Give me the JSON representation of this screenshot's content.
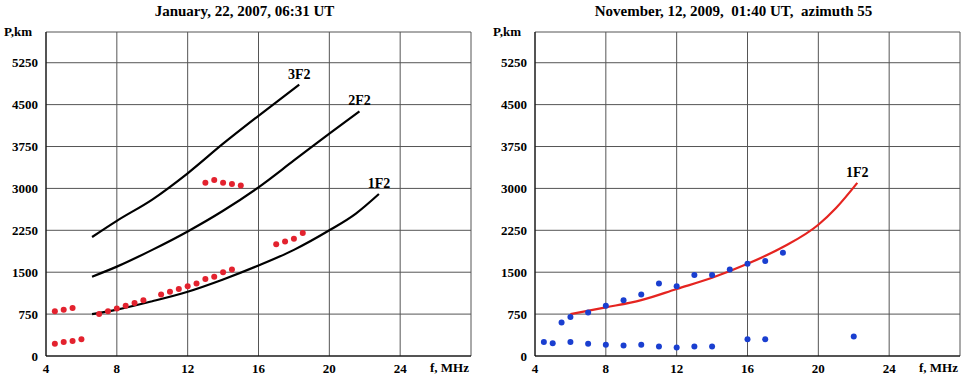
{
  "chart_data": [
    {
      "type": "scatter",
      "title": "January, 22, 2007, 06:31 UT",
      "x_label": "f, MHz",
      "y_label": "P,km",
      "xlim": [
        4,
        28
      ],
      "ylim": [
        0,
        5800
      ],
      "xticks": [
        4,
        8,
        12,
        16,
        20,
        24
      ],
      "yticks": [
        0,
        750,
        1500,
        2250,
        3000,
        3750,
        4500,
        5250
      ],
      "grid": true,
      "series": [
        {
          "type": "scatter",
          "color": "#e3222e",
          "marker": "circle",
          "x": [
            4.5,
            5,
            5.5,
            6,
            4.5,
            5,
            5.5,
            7,
            7.5,
            8,
            8.5,
            9,
            9.5,
            10.5,
            11,
            11.5,
            12,
            12.5,
            13,
            13.5,
            14,
            14.5,
            13,
            13.5,
            14,
            14.5,
            15,
            17,
            17.5,
            18,
            18.5
          ],
          "values": [
            220,
            250,
            270,
            300,
            800,
            830,
            860,
            750,
            800,
            850,
            900,
            950,
            1000,
            1100,
            1150,
            1200,
            1250,
            1300,
            1380,
            1420,
            1500,
            1550,
            3100,
            3150,
            3100,
            3080,
            3050,
            2000,
            2050,
            2100,
            2200
          ]
        },
        {
          "name": "1F2",
          "type": "line",
          "color": "#000000",
          "x": [
            6.6,
            8,
            10,
            12,
            14,
            16,
            18,
            20,
            21.5,
            22.8
          ],
          "values": [
            750,
            830,
            980,
            1150,
            1370,
            1620,
            1900,
            2250,
            2550,
            2900
          ]
        },
        {
          "name": "2F2",
          "type": "line",
          "color": "#000000",
          "x": [
            6.6,
            8,
            10,
            12,
            14,
            16,
            18,
            20,
            21.7
          ],
          "values": [
            1420,
            1600,
            1900,
            2230,
            2600,
            3020,
            3500,
            3980,
            4380
          ]
        },
        {
          "name": "3F2",
          "type": "line",
          "color": "#000000",
          "x": [
            6.6,
            8,
            10,
            12,
            14,
            16,
            18.3
          ],
          "values": [
            2130,
            2420,
            2800,
            3270,
            3800,
            4300,
            4860
          ]
        }
      ]
    },
    {
      "type": "scatter",
      "title": "November, 12, 2009,  01:40 UT,  azimuth 55",
      "x_label": "f, MHz",
      "y_label": "P,km",
      "xlim": [
        4,
        28
      ],
      "ylim": [
        0,
        5800
      ],
      "xticks": [
        4,
        8,
        12,
        16,
        20,
        24
      ],
      "yticks": [
        0,
        750,
        1500,
        2250,
        3000,
        3750,
        4500,
        5250
      ],
      "grid": true,
      "series": [
        {
          "type": "scatter",
          "color": "#1a3fd0",
          "marker": "circle",
          "x": [
            5.5,
            6,
            7,
            8,
            9,
            10,
            11,
            12,
            13,
            14,
            15,
            16,
            17,
            18,
            4.5,
            5,
            6,
            7,
            8,
            9,
            10,
            11,
            12,
            13,
            14,
            16,
            17,
            22
          ],
          "values": [
            600,
            700,
            780,
            900,
            1000,
            1100,
            1300,
            1250,
            1450,
            1450,
            1550,
            1650,
            1700,
            1850,
            250,
            230,
            250,
            220,
            200,
            190,
            200,
            170,
            150,
            170,
            170,
            300,
            300,
            350
          ]
        },
        {
          "name": "1F2",
          "type": "line",
          "color": "#e52420",
          "x": [
            6,
            8,
            10,
            12,
            14,
            16,
            18,
            20,
            21,
            22.2
          ],
          "values": [
            750,
            870,
            1000,
            1200,
            1400,
            1650,
            1950,
            2350,
            2650,
            3100
          ]
        }
      ]
    }
  ]
}
